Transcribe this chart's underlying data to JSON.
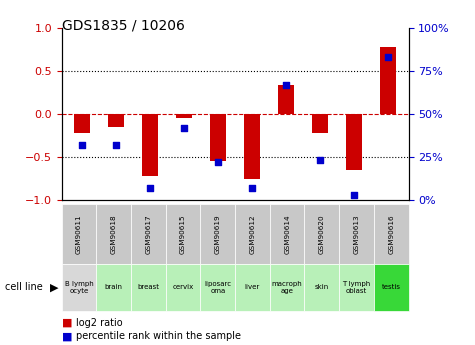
{
  "title": "GDS1835 / 10206",
  "samples": [
    "GSM90611",
    "GSM90618",
    "GSM90617",
    "GSM90615",
    "GSM90619",
    "GSM90612",
    "GSM90614",
    "GSM90620",
    "GSM90613",
    "GSM90616"
  ],
  "cell_lines": [
    "B lymph\nocyte",
    "brain",
    "breast",
    "cervix",
    "liposarc\noma",
    "liver",
    "macroph\nage",
    "skin",
    "T lymph\noblast",
    "testis"
  ],
  "cell_bg": [
    "#d8d8d8",
    "#b8f0b8",
    "#b8f0b8",
    "#b8f0b8",
    "#b8f0b8",
    "#b8f0b8",
    "#b8f0b8",
    "#b8f0b8",
    "#b8f0b8",
    "#38d838"
  ],
  "log2_ratio": [
    -0.22,
    -0.15,
    -0.72,
    -0.05,
    -0.55,
    -0.75,
    0.33,
    -0.22,
    -0.65,
    0.78
  ],
  "percentile_rank": [
    32,
    32,
    7,
    42,
    22,
    7,
    67,
    23,
    3,
    83
  ],
  "ylim_left": [
    -1,
    1
  ],
  "ylim_right": [
    0,
    100
  ],
  "yticks_left": [
    -1,
    -0.5,
    0,
    0.5,
    1
  ],
  "yticks_right": [
    0,
    25,
    50,
    75,
    100
  ],
  "bar_color_red": "#cc0000",
  "dot_color_blue": "#0000cc",
  "zero_line_color": "#cc0000",
  "grid_color": "#000000",
  "legend_label_red": "log2 ratio",
  "legend_label_blue": "percentile rank within the sample",
  "xlabel_label": "cell line",
  "bar_width": 0.45,
  "dot_size": 22
}
